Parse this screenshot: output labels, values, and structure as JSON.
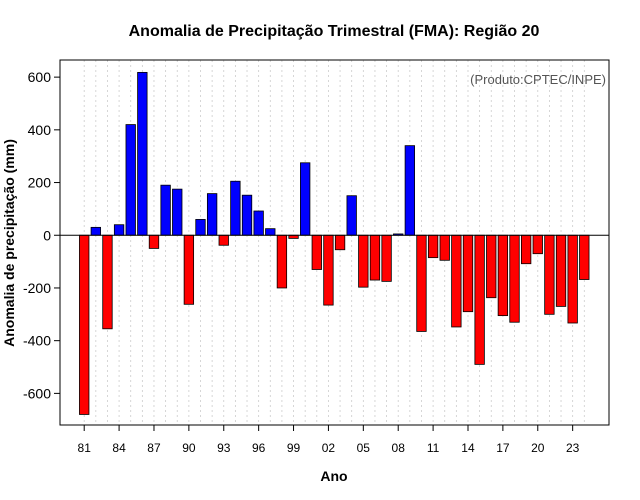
{
  "chart_data": {
    "type": "bar",
    "title": "Anomalia de Precipitação Trimestral (FMA): Região 20",
    "credit": "(Produto:CPTEC/INPE)",
    "xlabel": "Ano",
    "ylabel": "Anomalia de precipitação (mm)",
    "ylim": [
      -720,
      665
    ],
    "yticks": [
      -600,
      -400,
      -200,
      0,
      200,
      400,
      600
    ],
    "xtick_labels": [
      "81",
      "84",
      "87",
      "90",
      "93",
      "96",
      "99",
      "02",
      "05",
      "08",
      "11",
      "14",
      "17",
      "20",
      "23"
    ],
    "years": [
      "1981",
      "1982",
      "1983",
      "1984",
      "1985",
      "1986",
      "1987",
      "1988",
      "1989",
      "1990",
      "1991",
      "1992",
      "1993",
      "1994",
      "1995",
      "1996",
      "1997",
      "1998",
      "1999",
      "2000",
      "2001",
      "2002",
      "2003",
      "2004",
      "2005",
      "2006",
      "2007",
      "2008",
      "2009",
      "2010",
      "2011",
      "2012",
      "2013",
      "2014",
      "2015",
      "2016",
      "2017",
      "2018",
      "2019",
      "2020",
      "2021",
      "2022",
      "2023",
      "2024"
    ],
    "values": [
      -680,
      30,
      -355,
      40,
      420,
      618,
      -50,
      190,
      175,
      -262,
      60,
      158,
      -38,
      205,
      152,
      92,
      25,
      -200,
      -12,
      275,
      -130,
      -265,
      -55,
      150,
      -197,
      -170,
      -175,
      5,
      340,
      -365,
      -85,
      -95,
      -348,
      -290,
      -490,
      -237,
      -305,
      -330,
      -108,
      -70,
      -300,
      -270,
      -333,
      -168
    ],
    "positive_color": "#0000ff",
    "negative_color": "#ff0000",
    "grid": "vertical dotted"
  }
}
